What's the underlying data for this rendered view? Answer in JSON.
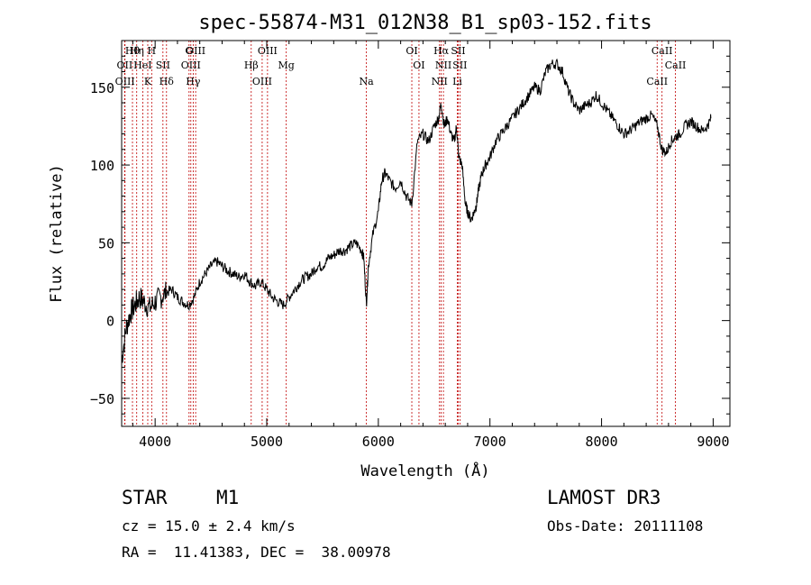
{
  "chart_data": {
    "type": "line",
    "title": "spec-55874-M31_012N38_B1_sp03-152.fits",
    "xlabel": "Wavelength (Å)",
    "ylabel": "Flux (relative)",
    "xlim": [
      3700,
      9150
    ],
    "ylim": [
      -68,
      180
    ],
    "xticks": [
      4000,
      5000,
      6000,
      7000,
      8000,
      9000
    ],
    "xtick_labels": [
      "4000",
      "5000",
      "6000",
      "7000",
      "8000",
      "9000"
    ],
    "yticks": [
      -50,
      0,
      50,
      100,
      150
    ],
    "ytick_labels": [
      "−50",
      "0",
      "50",
      "100",
      "150"
    ],
    "series": [
      {
        "name": "spectrum",
        "x": [
          3700,
          3740,
          3780,
          3820,
          3860,
          3900,
          3950,
          4000,
          4050,
          4100,
          4150,
          4200,
          4250,
          4300,
          4350,
          4400,
          4450,
          4500,
          4550,
          4600,
          4650,
          4700,
          4750,
          4800,
          4850,
          4900,
          4950,
          5000,
          5050,
          5100,
          5150,
          5200,
          5250,
          5300,
          5350,
          5400,
          5450,
          5500,
          5550,
          5600,
          5650,
          5700,
          5750,
          5800,
          5850,
          5870,
          5893,
          5910,
          5950,
          6000,
          6030,
          6060,
          6100,
          6150,
          6200,
          6250,
          6300,
          6350,
          6400,
          6450,
          6500,
          6540,
          6563,
          6590,
          6620,
          6650,
          6680,
          6700,
          6720,
          6750,
          6780,
          6800,
          6830,
          6860,
          6880,
          6900,
          6930,
          6960,
          7000,
          7050,
          7100,
          7150,
          7200,
          7250,
          7300,
          7350,
          7400,
          7450,
          7500,
          7550,
          7600,
          7650,
          7700,
          7750,
          7800,
          7850,
          7900,
          7950,
          8000,
          8050,
          8100,
          8150,
          8200,
          8250,
          8300,
          8350,
          8400,
          8450,
          8500,
          8540,
          8580,
          8620,
          8660,
          8700,
          8750,
          8800,
          8850,
          8900,
          8950,
          8980
        ],
        "y": [
          -25,
          -5,
          5,
          10,
          15,
          12,
          8,
          12,
          15,
          18,
          20,
          15,
          12,
          10,
          15,
          25,
          30,
          35,
          38,
          35,
          32,
          30,
          28,
          30,
          25,
          22,
          25,
          20,
          15,
          12,
          10,
          15,
          20,
          25,
          28,
          30,
          35,
          35,
          40,
          42,
          45,
          45,
          48,
          50,
          45,
          40,
          10,
          35,
          55,
          70,
          90,
          95,
          90,
          85,
          90,
          80,
          75,
          115,
          120,
          115,
          125,
          130,
          140,
          125,
          130,
          120,
          115,
          125,
          105,
          100,
          75,
          70,
          65,
          70,
          75,
          85,
          95,
          100,
          105,
          115,
          120,
          125,
          130,
          135,
          140,
          145,
          150,
          148,
          160,
          165,
          165,
          160,
          148,
          140,
          135,
          138,
          140,
          145,
          140,
          135,
          130,
          125,
          120,
          122,
          125,
          128,
          130,
          132,
          125,
          110,
          108,
          115,
          118,
          120,
          125,
          128,
          125,
          122,
          125,
          130
        ]
      }
    ],
    "lines": [
      {
        "name": "Hθ",
        "wl": 3797
      },
      {
        "name": "OII",
        "wl": 3727
      },
      {
        "name": "OIII",
        "wl": 3730
      },
      {
        "name": "Hη",
        "wl": 3835
      },
      {
        "name": "HeI",
        "wl": 3889
      },
      {
        "name": "K",
        "wl": 3934
      },
      {
        "name": "H",
        "wl": 3969
      },
      {
        "name": "SII",
        "wl": 4070
      },
      {
        "name": "Hδ",
        "wl": 4102
      },
      {
        "name": "G",
        "wl": 4304
      },
      {
        "name": "OIII",
        "wl": 4320
      },
      {
        "name": "Hγ",
        "wl": 4341
      },
      {
        "name": "OIII",
        "wl": 4363
      },
      {
        "name": "Hβ",
        "wl": 4861
      },
      {
        "name": "OIII",
        "wl": 4959
      },
      {
        "name": "OIII",
        "wl": 5007
      },
      {
        "name": "Mg",
        "wl": 5175
      },
      {
        "name": "Na",
        "wl": 5893
      },
      {
        "name": "OI",
        "wl": 6300
      },
      {
        "name": "OI",
        "wl": 6364
      },
      {
        "name": "NII",
        "wl": 6548
      },
      {
        "name": "Hα",
        "wl": 6563
      },
      {
        "name": "NII",
        "wl": 6583
      },
      {
        "name": "Li",
        "wl": 6708
      },
      {
        "name": "SII",
        "wl": 6716
      },
      {
        "name": "SII",
        "wl": 6731
      },
      {
        "name": "CaII",
        "wl": 8498
      },
      {
        "name": "CaII",
        "wl": 8542
      },
      {
        "name": "CaII",
        "wl": 8662
      }
    ]
  },
  "info": {
    "class": "STAR",
    "subclass": "M1",
    "survey": "LAMOST DR3",
    "cz": "cz = 15.0 ± 2.4 km/s",
    "obs_date": "Obs-Date: 20111108",
    "coords": "RA =  11.41383, DEC =  38.00978"
  },
  "colors": {
    "axis": "#000000",
    "spectrum": "#000000",
    "line_marker": "#c00000"
  }
}
